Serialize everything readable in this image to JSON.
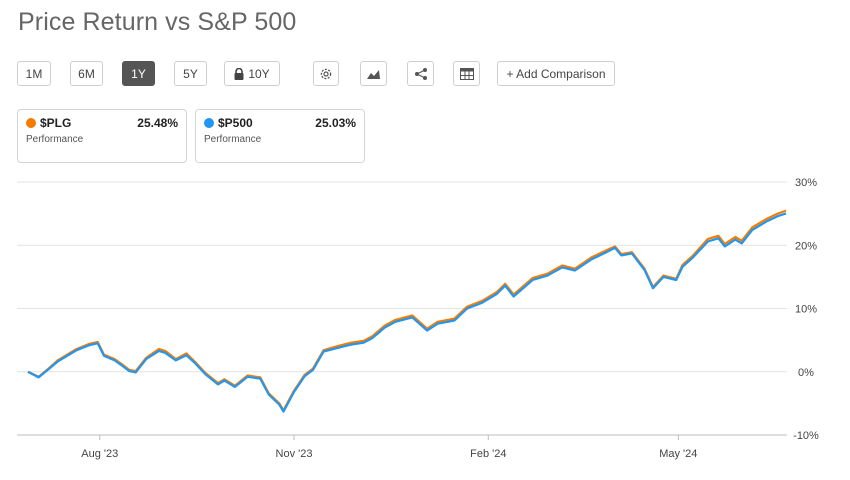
{
  "title": "Price Return vs S&P 500",
  "toolbar": {
    "ranges": [
      "1M",
      "6M",
      "1Y",
      "5Y",
      "10Y"
    ],
    "active_range": "1Y",
    "locked_range": "10Y",
    "add_comparison_label": "+ Add Comparison",
    "icons": [
      "gear-icon",
      "chart-type-icon",
      "share-icon",
      "table-icon",
      "lock-icon"
    ]
  },
  "cards": [
    {
      "symbol": "$PLG",
      "value": "25.48%",
      "label": "Performance",
      "color": "#f57c00"
    },
    {
      "symbol": "$P500",
      "value": "25.03%",
      "label": "Performance",
      "color": "#2196f3"
    }
  ],
  "chart_data": {
    "type": "line",
    "x_tick_labels": [
      "Aug '23",
      "Nov '23",
      "Feb '24",
      "May '24"
    ],
    "y_tick_labels": [
      "30%",
      "20%",
      "10%",
      "0%",
      "-10%"
    ],
    "ylim": [
      -10,
      30
    ],
    "grid": true,
    "x_range": [
      "2023-06-28",
      "2024-06-21"
    ],
    "series": [
      {
        "name": "$PLG",
        "color": "#f57c00",
        "points": [
          [
            "2023-06-28",
            0.0
          ],
          [
            "2023-07-03",
            -0.8
          ],
          [
            "2023-07-07",
            0.3
          ],
          [
            "2023-07-12",
            1.8
          ],
          [
            "2023-07-18",
            3.0
          ],
          [
            "2023-07-21",
            3.6
          ],
          [
            "2023-07-27",
            4.4
          ],
          [
            "2023-07-31",
            4.7
          ],
          [
            "2023-08-03",
            2.7
          ],
          [
            "2023-08-08",
            2.0
          ],
          [
            "2023-08-11",
            1.3
          ],
          [
            "2023-08-15",
            0.3
          ],
          [
            "2023-08-18",
            0.1
          ],
          [
            "2023-08-23",
            2.2
          ],
          [
            "2023-08-29",
            3.6
          ],
          [
            "2023-09-01",
            3.3
          ],
          [
            "2023-09-06",
            2.0
          ],
          [
            "2023-09-11",
            2.9
          ],
          [
            "2023-09-15",
            1.6
          ],
          [
            "2023-09-20",
            -0.2
          ],
          [
            "2023-09-26",
            -1.8
          ],
          [
            "2023-09-29",
            -1.2
          ],
          [
            "2023-10-04",
            -2.2
          ],
          [
            "2023-10-10",
            -0.6
          ],
          [
            "2023-10-16",
            -0.9
          ],
          [
            "2023-10-20",
            -3.4
          ],
          [
            "2023-10-25",
            -5.0
          ],
          [
            "2023-10-27",
            -6.1
          ],
          [
            "2023-11-01",
            -3.0
          ],
          [
            "2023-11-06",
            -0.5
          ],
          [
            "2023-11-10",
            0.5
          ],
          [
            "2023-11-15",
            3.4
          ],
          [
            "2023-11-21",
            4.0
          ],
          [
            "2023-11-28",
            4.6
          ],
          [
            "2023-12-04",
            4.9
          ],
          [
            "2023-12-08",
            5.6
          ],
          [
            "2023-12-14",
            7.3
          ],
          [
            "2023-12-19",
            8.2
          ],
          [
            "2023-12-27",
            8.9
          ],
          [
            "2024-01-03",
            6.8
          ],
          [
            "2024-01-08",
            7.9
          ],
          [
            "2024-01-16",
            8.4
          ],
          [
            "2024-01-22",
            10.3
          ],
          [
            "2024-01-29",
            11.2
          ],
          [
            "2024-02-05",
            12.6
          ],
          [
            "2024-02-09",
            13.9
          ],
          [
            "2024-02-13",
            12.2
          ],
          [
            "2024-02-22",
            14.8
          ],
          [
            "2024-02-29",
            15.5
          ],
          [
            "2024-03-07",
            16.8
          ],
          [
            "2024-03-13",
            16.3
          ],
          [
            "2024-03-21",
            18.1
          ],
          [
            "2024-03-28",
            19.2
          ],
          [
            "2024-04-01",
            19.8
          ],
          [
            "2024-04-04",
            18.6
          ],
          [
            "2024-04-09",
            18.9
          ],
          [
            "2024-04-15",
            16.3
          ],
          [
            "2024-04-19",
            13.4
          ],
          [
            "2024-04-24",
            15.2
          ],
          [
            "2024-04-30",
            14.7
          ],
          [
            "2024-05-03",
            16.9
          ],
          [
            "2024-05-08",
            18.4
          ],
          [
            "2024-05-15",
            21.0
          ],
          [
            "2024-05-20",
            21.5
          ],
          [
            "2024-05-23",
            20.2
          ],
          [
            "2024-05-28",
            21.3
          ],
          [
            "2024-05-31",
            20.7
          ],
          [
            "2024-06-05",
            22.8
          ],
          [
            "2024-06-12",
            24.2
          ],
          [
            "2024-06-17",
            25.0
          ],
          [
            "2024-06-21",
            25.48
          ]
        ]
      },
      {
        "name": "$P500",
        "color": "#2196f3",
        "points": [
          [
            "2023-06-28",
            0.0
          ],
          [
            "2023-07-03",
            -0.9
          ],
          [
            "2023-07-07",
            0.2
          ],
          [
            "2023-07-12",
            1.6
          ],
          [
            "2023-07-18",
            2.8
          ],
          [
            "2023-07-21",
            3.4
          ],
          [
            "2023-07-27",
            4.2
          ],
          [
            "2023-07-31",
            4.5
          ],
          [
            "2023-08-03",
            2.5
          ],
          [
            "2023-08-08",
            1.8
          ],
          [
            "2023-08-11",
            1.1
          ],
          [
            "2023-08-15",
            0.1
          ],
          [
            "2023-08-18",
            -0.1
          ],
          [
            "2023-08-23",
            2.0
          ],
          [
            "2023-08-29",
            3.3
          ],
          [
            "2023-09-01",
            3.0
          ],
          [
            "2023-09-06",
            1.8
          ],
          [
            "2023-09-11",
            2.6
          ],
          [
            "2023-09-15",
            1.4
          ],
          [
            "2023-09-20",
            -0.4
          ],
          [
            "2023-09-26",
            -2.0
          ],
          [
            "2023-09-29",
            -1.4
          ],
          [
            "2023-10-04",
            -2.4
          ],
          [
            "2023-10-10",
            -0.8
          ],
          [
            "2023-10-16",
            -1.1
          ],
          [
            "2023-10-20",
            -3.6
          ],
          [
            "2023-10-25",
            -5.2
          ],
          [
            "2023-10-27",
            -6.3
          ],
          [
            "2023-11-01",
            -3.2
          ],
          [
            "2023-11-06",
            -0.7
          ],
          [
            "2023-11-10",
            0.3
          ],
          [
            "2023-11-15",
            3.2
          ],
          [
            "2023-11-21",
            3.7
          ],
          [
            "2023-11-28",
            4.3
          ],
          [
            "2023-12-04",
            4.6
          ],
          [
            "2023-12-08",
            5.3
          ],
          [
            "2023-12-14",
            7.0
          ],
          [
            "2023-12-19",
            7.9
          ],
          [
            "2023-12-27",
            8.6
          ],
          [
            "2024-01-03",
            6.5
          ],
          [
            "2024-01-08",
            7.6
          ],
          [
            "2024-01-16",
            8.1
          ],
          [
            "2024-01-22",
            10.0
          ],
          [
            "2024-01-29",
            10.9
          ],
          [
            "2024-02-05",
            12.3
          ],
          [
            "2024-02-09",
            13.6
          ],
          [
            "2024-02-13",
            11.9
          ],
          [
            "2024-02-22",
            14.5
          ],
          [
            "2024-02-29",
            15.2
          ],
          [
            "2024-03-07",
            16.5
          ],
          [
            "2024-03-13",
            16.0
          ],
          [
            "2024-03-21",
            17.8
          ],
          [
            "2024-03-28",
            18.9
          ],
          [
            "2024-04-01",
            19.6
          ],
          [
            "2024-04-04",
            18.4
          ],
          [
            "2024-04-09",
            18.7
          ],
          [
            "2024-04-15",
            16.1
          ],
          [
            "2024-04-19",
            13.2
          ],
          [
            "2024-04-24",
            15.0
          ],
          [
            "2024-04-30",
            14.5
          ],
          [
            "2024-05-03",
            16.6
          ],
          [
            "2024-05-08",
            18.1
          ],
          [
            "2024-05-15",
            20.6
          ],
          [
            "2024-05-20",
            21.1
          ],
          [
            "2024-05-23",
            19.8
          ],
          [
            "2024-05-28",
            20.9
          ],
          [
            "2024-05-31",
            20.3
          ],
          [
            "2024-06-05",
            22.4
          ],
          [
            "2024-06-12",
            23.8
          ],
          [
            "2024-06-17",
            24.6
          ],
          [
            "2024-06-21",
            25.03
          ]
        ]
      }
    ]
  }
}
